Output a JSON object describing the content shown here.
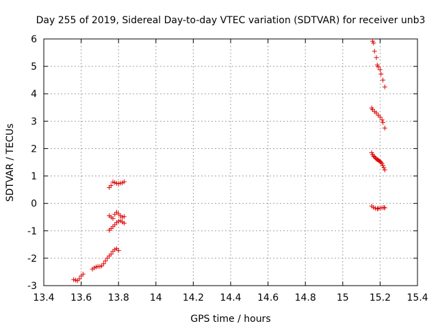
{
  "chart_data": {
    "type": "scatter",
    "title": "Day 255 of 2019, Sidereal Day-to-day VTEC variation (SDTVAR) for receiver unb3",
    "xlabel": "GPS time / hours",
    "ylabel": "SDTVAR / TECUs",
    "xlim": [
      13.4,
      15.4
    ],
    "ylim": [
      -3,
      6
    ],
    "xticks": [
      "13.4",
      "13.6",
      "13.8",
      "14",
      "14.2",
      "14.4",
      "14.6",
      "14.8",
      "15",
      "15.2",
      "15.4"
    ],
    "yticks": [
      "-3",
      "-2",
      "-1",
      "0",
      "1",
      "2",
      "3",
      "4",
      "5",
      "6"
    ],
    "grid": true,
    "marker": "+",
    "series": [
      {
        "name": "SDTVAR",
        "color": "#dd0000",
        "points": [
          [
            13.56,
            -2.78
          ],
          [
            13.57,
            -2.8
          ],
          [
            13.58,
            -2.82
          ],
          [
            13.59,
            -2.75
          ],
          [
            13.6,
            -2.65
          ],
          [
            13.61,
            -2.58
          ],
          [
            13.66,
            -2.4
          ],
          [
            13.67,
            -2.35
          ],
          [
            13.68,
            -2.32
          ],
          [
            13.69,
            -2.3
          ],
          [
            13.7,
            -2.3
          ],
          [
            13.71,
            -2.28
          ],
          [
            13.72,
            -2.2
          ],
          [
            13.73,
            -2.1
          ],
          [
            13.74,
            -2.0
          ],
          [
            13.75,
            -1.92
          ],
          [
            13.76,
            -1.85
          ],
          [
            13.77,
            -1.75
          ],
          [
            13.78,
            -1.68
          ],
          [
            13.79,
            -1.65
          ],
          [
            13.8,
            -1.72
          ],
          [
            13.75,
            -0.98
          ],
          [
            13.76,
            -0.92
          ],
          [
            13.77,
            -0.85
          ],
          [
            13.78,
            -0.78
          ],
          [
            13.79,
            -0.7
          ],
          [
            13.8,
            -0.65
          ],
          [
            13.81,
            -0.63
          ],
          [
            13.82,
            -0.68
          ],
          [
            13.83,
            -0.72
          ],
          [
            13.75,
            -0.45
          ],
          [
            13.76,
            -0.5
          ],
          [
            13.77,
            -0.55
          ],
          [
            13.78,
            -0.4
          ],
          [
            13.79,
            -0.32
          ],
          [
            13.8,
            -0.38
          ],
          [
            13.81,
            -0.45
          ],
          [
            13.82,
            -0.5
          ],
          [
            13.83,
            -0.48
          ],
          [
            13.75,
            0.58
          ],
          [
            13.76,
            0.65
          ],
          [
            13.77,
            0.78
          ],
          [
            13.78,
            0.76
          ],
          [
            13.79,
            0.73
          ],
          [
            13.8,
            0.72
          ],
          [
            13.81,
            0.74
          ],
          [
            13.82,
            0.75
          ],
          [
            13.83,
            0.79
          ],
          [
            15.16,
            5.92
          ],
          [
            15.165,
            5.85
          ],
          [
            15.17,
            5.55
          ],
          [
            15.18,
            5.32
          ],
          [
            15.185,
            5.05
          ],
          [
            15.19,
            4.98
          ],
          [
            15.2,
            4.88
          ],
          [
            15.205,
            4.72
          ],
          [
            15.215,
            4.5
          ],
          [
            15.225,
            4.25
          ],
          [
            15.155,
            3.48
          ],
          [
            15.16,
            3.42
          ],
          [
            15.17,
            3.35
          ],
          [
            15.18,
            3.3
          ],
          [
            15.19,
            3.22
          ],
          [
            15.2,
            3.15
          ],
          [
            15.21,
            3.05
          ],
          [
            15.215,
            2.95
          ],
          [
            15.225,
            2.75
          ],
          [
            15.155,
            1.85
          ],
          [
            15.16,
            1.78
          ],
          [
            15.165,
            1.72
          ],
          [
            15.17,
            1.7
          ],
          [
            15.175,
            1.66
          ],
          [
            15.18,
            1.62
          ],
          [
            15.185,
            1.6
          ],
          [
            15.19,
            1.58
          ],
          [
            15.195,
            1.55
          ],
          [
            15.2,
            1.53
          ],
          [
            15.205,
            1.5
          ],
          [
            15.21,
            1.45
          ],
          [
            15.215,
            1.38
          ],
          [
            15.22,
            1.3
          ],
          [
            15.225,
            1.22
          ],
          [
            15.155,
            -0.1
          ],
          [
            15.165,
            -0.15
          ],
          [
            15.175,
            -0.18
          ],
          [
            15.185,
            -0.2
          ],
          [
            15.19,
            -0.18
          ],
          [
            15.2,
            -0.17
          ],
          [
            15.21,
            -0.16
          ],
          [
            15.22,
            -0.15
          ],
          [
            15.225,
            -0.16
          ]
        ]
      }
    ]
  }
}
